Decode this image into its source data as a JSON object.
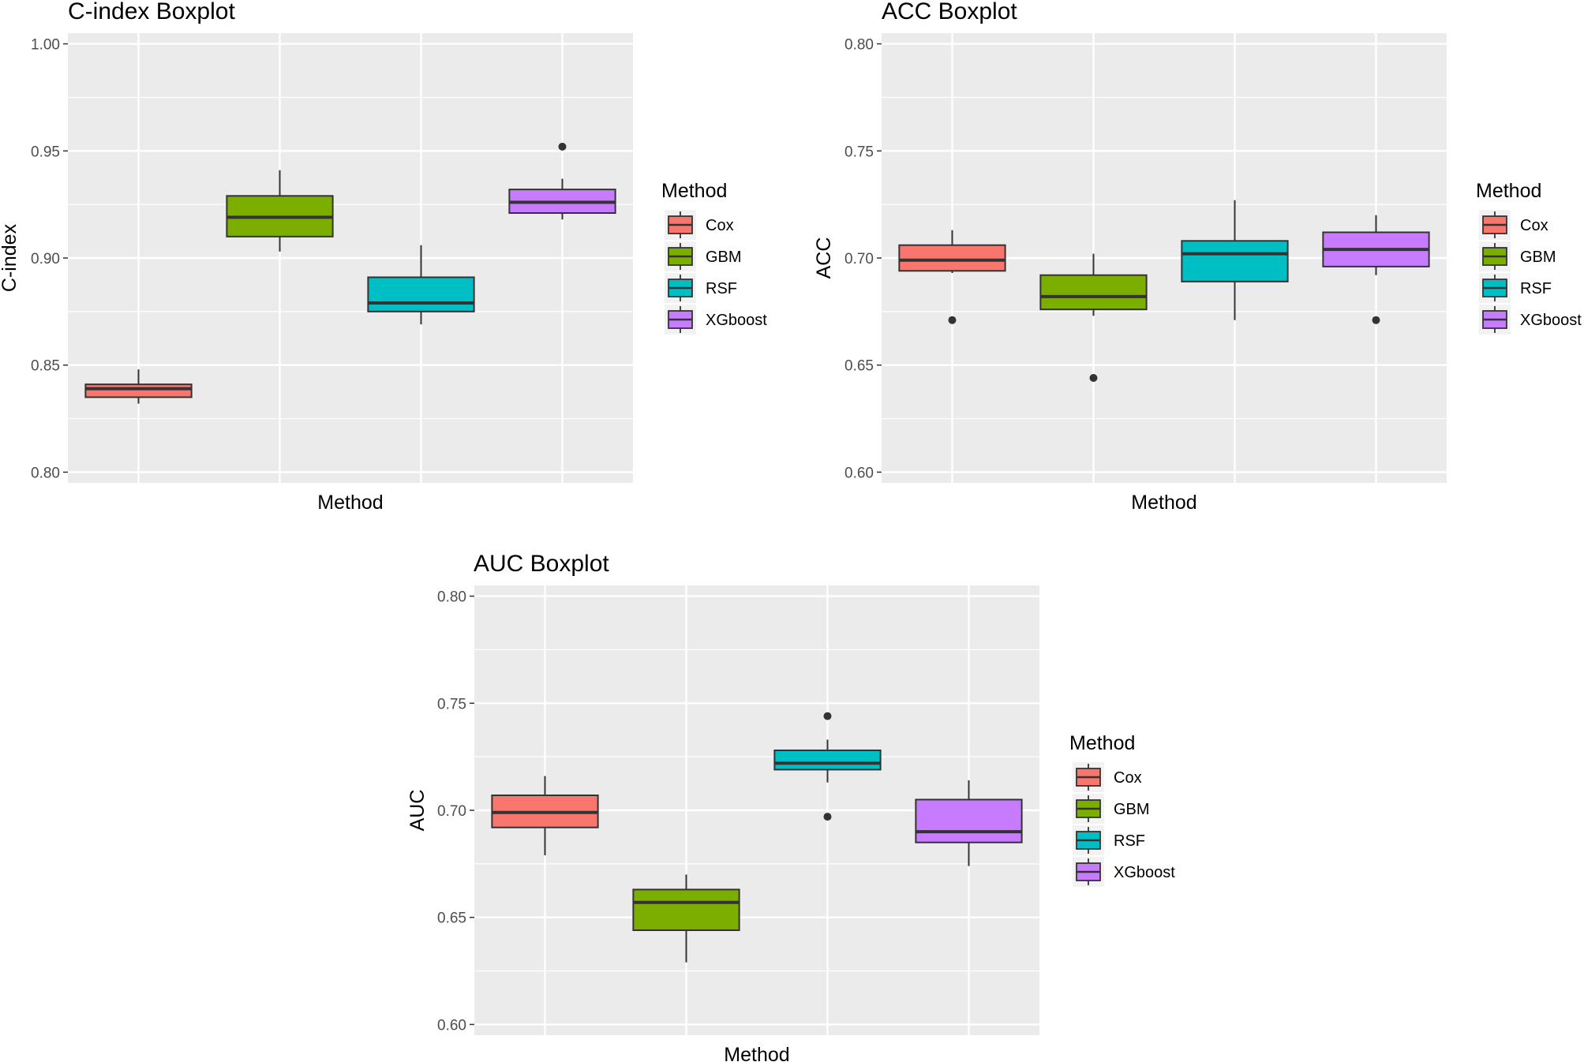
{
  "chart_data": [
    {
      "type": "boxplot",
      "title": "C-index Boxplot",
      "xlabel": "Method",
      "ylabel": "C-index",
      "ylim": [
        0.795,
        1.005
      ],
      "yticks": [
        0.8,
        0.85,
        0.9,
        0.95,
        1.0
      ],
      "ytick_labels": [
        "0.80",
        "0.85",
        "0.90",
        "0.95",
        "1.00"
      ],
      "legend": {
        "title": "Method",
        "position": "right"
      },
      "series": [
        {
          "name": "Cox",
          "color": "#F8766D",
          "whisker_low": 0.832,
          "q1": 0.835,
          "median": 0.839,
          "q3": 0.841,
          "whisker_high": 0.848,
          "outliers": []
        },
        {
          "name": "GBM",
          "color": "#7CAE00",
          "whisker_low": 0.903,
          "q1": 0.91,
          "median": 0.919,
          "q3": 0.929,
          "whisker_high": 0.941,
          "outliers": []
        },
        {
          "name": "RSF",
          "color": "#00BFC4",
          "whisker_low": 0.869,
          "q1": 0.875,
          "median": 0.879,
          "q3": 0.891,
          "whisker_high": 0.906,
          "outliers": []
        },
        {
          "name": "XGboost",
          "color": "#C77CFF",
          "whisker_low": 0.918,
          "q1": 0.921,
          "median": 0.926,
          "q3": 0.932,
          "whisker_high": 0.937,
          "outliers": [
            0.952
          ]
        }
      ]
    },
    {
      "type": "boxplot",
      "title": "ACC Boxplot",
      "xlabel": "Method",
      "ylabel": "ACC",
      "ylim": [
        0.595,
        0.805
      ],
      "yticks": [
        0.6,
        0.65,
        0.7,
        0.75,
        0.8
      ],
      "ytick_labels": [
        "0.60",
        "0.65",
        "0.70",
        "0.75",
        "0.80"
      ],
      "legend": {
        "title": "Method",
        "position": "right"
      },
      "series": [
        {
          "name": "Cox",
          "color": "#F8766D",
          "whisker_low": 0.693,
          "q1": 0.694,
          "median": 0.699,
          "q3": 0.706,
          "whisker_high": 0.713,
          "outliers": [
            0.671
          ]
        },
        {
          "name": "GBM",
          "color": "#7CAE00",
          "whisker_low": 0.673,
          "q1": 0.676,
          "median": 0.682,
          "q3": 0.692,
          "whisker_high": 0.702,
          "outliers": [
            0.644
          ]
        },
        {
          "name": "RSF",
          "color": "#00BFC4",
          "whisker_low": 0.671,
          "q1": 0.689,
          "median": 0.702,
          "q3": 0.708,
          "whisker_high": 0.727,
          "outliers": []
        },
        {
          "name": "XGboost",
          "color": "#C77CFF",
          "whisker_low": 0.692,
          "q1": 0.696,
          "median": 0.704,
          "q3": 0.712,
          "whisker_high": 0.72,
          "outliers": [
            0.671
          ]
        }
      ]
    },
    {
      "type": "boxplot",
      "title": "AUC Boxplot",
      "xlabel": "Method",
      "ylabel": "AUC",
      "ylim": [
        0.595,
        0.805
      ],
      "yticks": [
        0.6,
        0.65,
        0.7,
        0.75,
        0.8
      ],
      "ytick_labels": [
        "0.60",
        "0.65",
        "0.70",
        "0.75",
        "0.80"
      ],
      "legend": {
        "title": "Method",
        "position": "right"
      },
      "series": [
        {
          "name": "Cox",
          "color": "#F8766D",
          "whisker_low": 0.679,
          "q1": 0.692,
          "median": 0.699,
          "q3": 0.707,
          "whisker_high": 0.716,
          "outliers": []
        },
        {
          "name": "GBM",
          "color": "#7CAE00",
          "whisker_low": 0.629,
          "q1": 0.644,
          "median": 0.657,
          "q3": 0.663,
          "whisker_high": 0.67,
          "outliers": []
        },
        {
          "name": "RSF",
          "color": "#00BFC4",
          "whisker_low": 0.713,
          "q1": 0.719,
          "median": 0.722,
          "q3": 0.728,
          "whisker_high": 0.733,
          "outliers": [
            0.744,
            0.697
          ]
        },
        {
          "name": "XGboost",
          "color": "#C77CFF",
          "whisker_low": 0.674,
          "q1": 0.685,
          "median": 0.69,
          "q3": 0.705,
          "whisker_high": 0.714,
          "outliers": []
        }
      ]
    }
  ]
}
